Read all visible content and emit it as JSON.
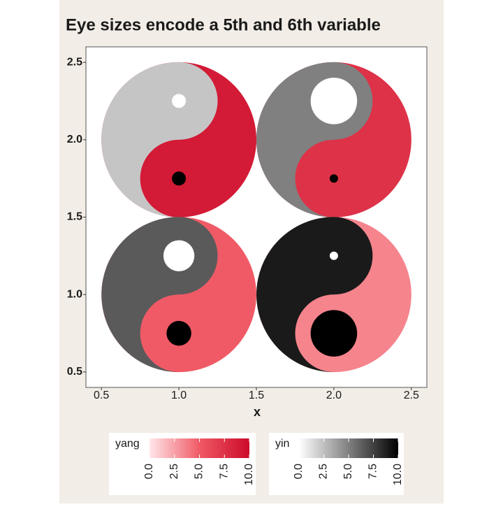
{
  "chart_data": {
    "type": "yinyang",
    "title": "Eye sizes encode a 5th and 6th variable",
    "x_label": "x",
    "x": [
      1,
      2,
      1,
      2
    ],
    "y": [
      2,
      2,
      1,
      1
    ],
    "radius": 0.5,
    "yin": [
      2.3,
      5,
      6.5,
      9
    ],
    "yang": [
      9,
      7.5,
      5,
      3.5
    ],
    "eye_white": [
      0.045,
      0.15,
      0.1,
      0.027
    ],
    "eye_black": [
      0.045,
      0.027,
      0.08,
      0.15
    ],
    "xlim": [
      0.4,
      2.6
    ],
    "ylim": [
      0.4,
      2.6
    ],
    "xticks": [
      {
        "value": 0.5,
        "label": "0.5"
      },
      {
        "value": 1,
        "label": "1.0"
      },
      {
        "value": 1.5,
        "label": "1.5"
      },
      {
        "value": 2,
        "label": "2.0"
      },
      {
        "value": 2.5,
        "label": "2.5"
      }
    ],
    "yticks": [
      {
        "value": 0.5,
        "label": "0.5"
      },
      {
        "value": 1,
        "label": "1.0"
      },
      {
        "value": 1.5,
        "label": "1.5"
      },
      {
        "value": 2,
        "label": "2.0"
      },
      {
        "value": 2.5,
        "label": "2.5"
      }
    ],
    "legends": [
      {
        "name": "yang",
        "colors": [
          "#ffe6e9",
          "#f05a66",
          "#cc0a2a"
        ],
        "lim": [
          0,
          10
        ],
        "ticks": [
          {
            "value": 0,
            "label": "0.0"
          },
          {
            "value": 2.5,
            "label": "2.5"
          },
          {
            "value": 5,
            "label": "5.0"
          },
          {
            "value": 7.5,
            "label": "7.5"
          },
          {
            "value": 10,
            "label": "10.0"
          }
        ]
      },
      {
        "name": "yin",
        "colors": [
          "#ffffff",
          "#808080",
          "#000000"
        ],
        "lim": [
          0,
          10
        ],
        "ticks": [
          {
            "value": 0,
            "label": "0.0"
          },
          {
            "value": 2.5,
            "label": "2.5"
          },
          {
            "value": 5,
            "label": "5.0"
          },
          {
            "value": 7.5,
            "label": "7.5"
          },
          {
            "value": 10,
            "label": "10.0"
          }
        ]
      }
    ]
  }
}
